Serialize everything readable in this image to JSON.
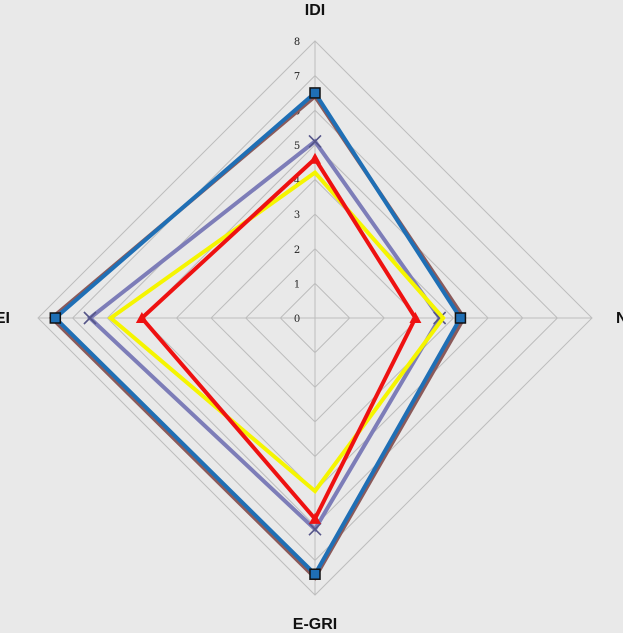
{
  "chart_data": {
    "type": "radar",
    "axes": [
      "IDI",
      "NRI",
      "E-GRI",
      "KEI"
    ],
    "rlim": [
      0,
      8
    ],
    "ticks": [
      "0",
      "1",
      "2",
      "3",
      "4",
      "5",
      "6",
      "7",
      "8"
    ],
    "grid": true,
    "series": [
      {
        "values": [
          6.4,
          4.3,
          7.5,
          7.6
        ],
        "color": "#8b5a5a",
        "marker": "none"
      },
      {
        "values": [
          6.5,
          4.2,
          7.4,
          7.5
        ],
        "color": "#1f6fb5",
        "marker": "square"
      },
      {
        "values": [
          5.1,
          3.6,
          6.1,
          6.5
        ],
        "color": "#7d7db8",
        "marker": "x"
      },
      {
        "values": [
          4.2,
          3.7,
          5.0,
          5.9
        ],
        "color": "#f5f500",
        "marker": "none"
      },
      {
        "values": [
          4.6,
          2.9,
          5.8,
          5.0
        ],
        "color": "#ee1111",
        "marker": "triangle"
      }
    ]
  }
}
